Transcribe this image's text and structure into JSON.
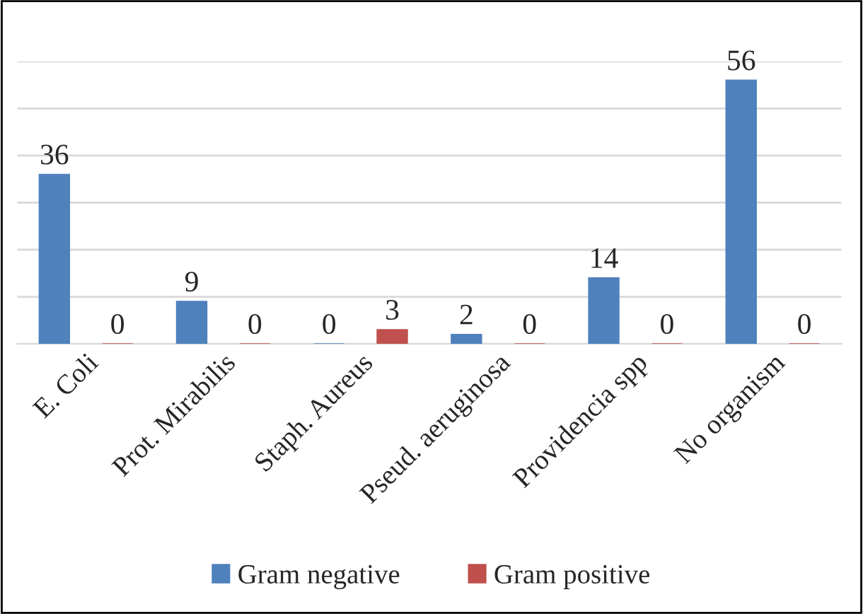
{
  "chart_data": {
    "type": "bar",
    "categories": [
      "E. Coli",
      "Prot. Mirabilis",
      "Staph. Aureus",
      "Pseud. aeruginosa",
      "Providencia spp",
      "No organism"
    ],
    "series": [
      {
        "name": "Gram negative",
        "color": "#4f81bd",
        "values": [
          36,
          9,
          0,
          2,
          14,
          56
        ]
      },
      {
        "name": "Gram positive",
        "color": "#c0504d",
        "values": [
          0,
          0,
          3,
          0,
          0,
          0
        ]
      }
    ],
    "ylim": [
      0,
      60
    ],
    "yticks": [
      {
        "value": 0,
        "label": null
      },
      {
        "value": 10,
        "label": null
      },
      {
        "value": 20,
        "label": null
      },
      {
        "value": 30,
        "label": null
      },
      {
        "value": 40,
        "label": null
      },
      {
        "value": 50,
        "label": null
      },
      {
        "value": 60,
        "label": null
      }
    ],
    "grid": "y",
    "data_labels": true,
    "legend": "bottom",
    "tick_labels": "x"
  }
}
